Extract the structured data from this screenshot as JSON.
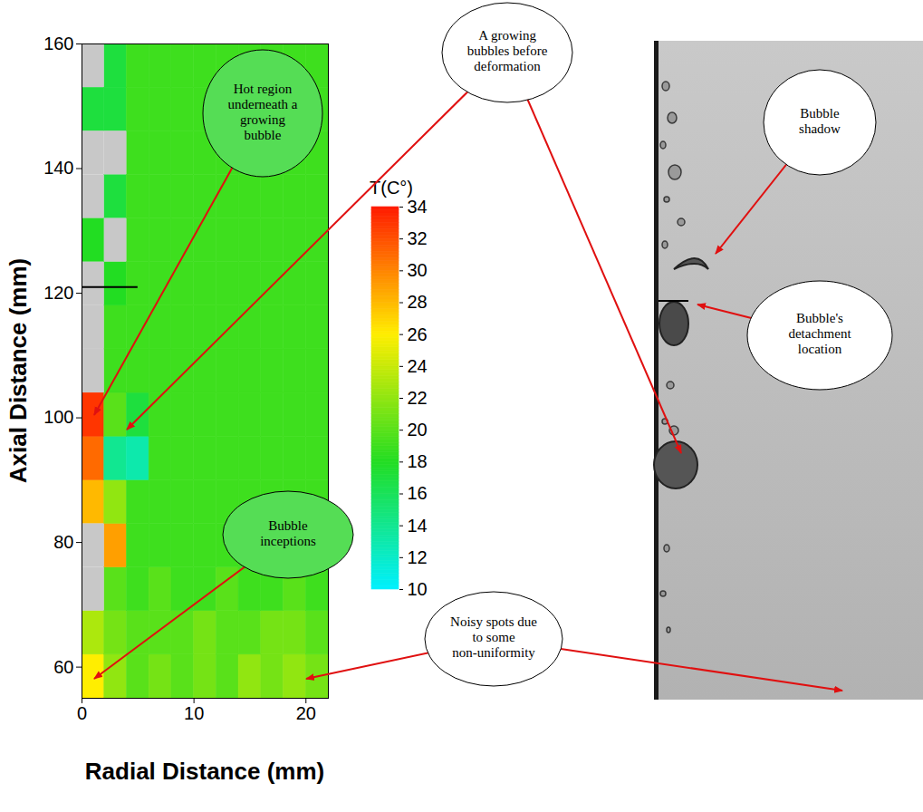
{
  "chart_data": {
    "type": "heatmap",
    "x_label": "Radial Distance (mm)",
    "y_label": "Axial Distance (mm)",
    "xlim": [
      0,
      22
    ],
    "xticks": [
      0,
      10,
      20
    ],
    "ylim": [
      55,
      160
    ],
    "yticks": [
      60,
      80,
      100,
      120,
      140,
      160
    ],
    "x_edges": [
      0,
      2,
      4,
      6,
      8,
      10,
      12,
      14,
      16,
      18,
      20,
      22
    ],
    "y_edges": [
      55,
      62,
      69,
      76,
      83,
      90,
      97,
      104,
      111,
      118,
      125,
      132,
      139,
      146,
      153,
      160
    ],
    "values": [
      [
        26,
        22,
        20,
        21,
        20,
        21,
        20,
        22,
        21,
        22,
        21
      ],
      [
        23,
        21,
        20,
        20,
        20,
        21,
        20,
        20,
        21,
        21,
        20
      ],
      [
        null,
        20,
        19,
        20,
        19,
        19,
        20,
        19,
        19,
        20,
        19
      ],
      [
        null,
        29,
        19,
        19,
        19,
        19,
        19,
        19,
        19,
        19,
        19
      ],
      [
        28,
        22,
        19,
        19,
        19,
        19,
        19,
        19,
        19,
        19,
        19
      ],
      [
        31,
        14,
        13,
        19,
        19,
        19,
        19,
        19,
        19,
        19,
        19
      ],
      [
        33,
        20,
        17,
        19,
        19,
        19,
        19,
        19,
        19,
        19,
        19
      ],
      [
        null,
        19,
        19,
        19,
        19,
        19,
        19,
        19,
        19,
        19,
        19
      ],
      [
        null,
        19,
        19,
        19,
        19,
        19,
        19,
        19,
        19,
        19,
        19
      ],
      [
        null,
        18,
        19,
        19,
        19,
        19,
        19,
        19,
        19,
        19,
        19
      ],
      [
        18,
        null,
        19,
        19,
        19,
        19,
        19,
        19,
        19,
        19,
        19
      ],
      [
        null,
        17,
        19,
        19,
        19,
        19,
        19,
        19,
        19,
        19,
        19
      ],
      [
        null,
        null,
        19,
        19,
        19,
        19,
        19,
        19,
        19,
        19,
        19
      ],
      [
        17,
        17,
        19,
        19,
        19,
        19,
        19,
        19,
        19,
        19,
        19
      ],
      [
        null,
        17,
        19,
        19,
        19,
        19,
        19,
        19,
        19,
        19,
        19
      ]
    ],
    "colorbar": {
      "title": "T(C°)",
      "range": [
        10,
        34
      ],
      "ticks": [
        10,
        12,
        14,
        16,
        18,
        20,
        22,
        24,
        26,
        28,
        30,
        32,
        34
      ]
    },
    "detachment_line": {
      "y": 121,
      "x1": 0,
      "x2": 5
    },
    "annotations": [
      "Hot region underneath a growing bubble",
      "A growing bubbles before deformation",
      "Bubble inceptions",
      "Noisy spots due to some non-uniformity",
      "Bubble shadow",
      "Bubble's detachment location"
    ]
  }
}
